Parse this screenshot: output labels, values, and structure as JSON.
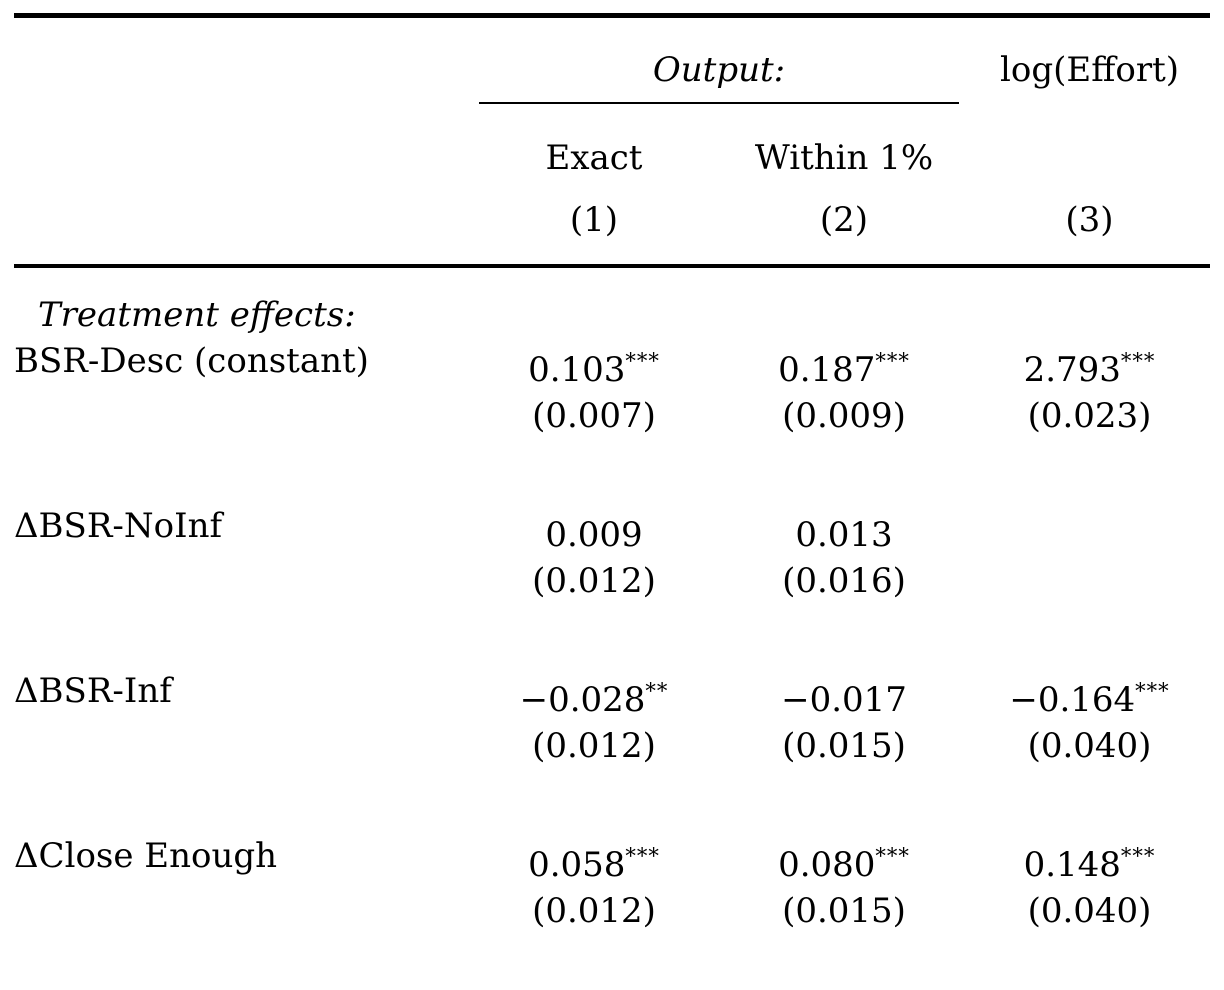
{
  "table": {
    "header": {
      "output_group_label": "Output:",
      "col3_label": "log(Effort)",
      "sub_label_1": "Exact",
      "sub_label_2": "Within 1%",
      "col_number_1": "(1)",
      "col_number_2": "(2)",
      "col_number_3": "(3)"
    },
    "section_label": "Treatment effects:",
    "rows": [
      {
        "label": "BSR-Desc (constant)",
        "cells": [
          {
            "value": "0.103",
            "stars": "***",
            "se": "(0.007)"
          },
          {
            "value": "0.187",
            "stars": "***",
            "se": "(0.009)"
          },
          {
            "value": "2.793",
            "stars": "***",
            "se": "(0.023)"
          }
        ]
      },
      {
        "label": "ΔBSR-NoInf",
        "cells": [
          {
            "value": "0.009",
            "stars": "",
            "se": "(0.012)"
          },
          {
            "value": "0.013",
            "stars": "",
            "se": "(0.016)"
          },
          {
            "value": "",
            "stars": "",
            "se": ""
          }
        ]
      },
      {
        "label": "ΔBSR-Inf",
        "cells": [
          {
            "value": "−0.028",
            "stars": "**",
            "se": "(0.012)"
          },
          {
            "value": "−0.017",
            "stars": "",
            "se": "(0.015)"
          },
          {
            "value": "−0.164",
            "stars": "***",
            "se": "(0.040)"
          }
        ]
      },
      {
        "label": "ΔClose Enough",
        "cells": [
          {
            "value": "0.058",
            "stars": "***",
            "se": "(0.012)"
          },
          {
            "value": "0.080",
            "stars": "***",
            "se": "(0.015)"
          },
          {
            "value": "0.148",
            "stars": "***",
            "se": "(0.040)"
          }
        ]
      }
    ],
    "colors": {
      "text": "#000000",
      "background": "#ffffff",
      "rule": "#000000"
    }
  }
}
